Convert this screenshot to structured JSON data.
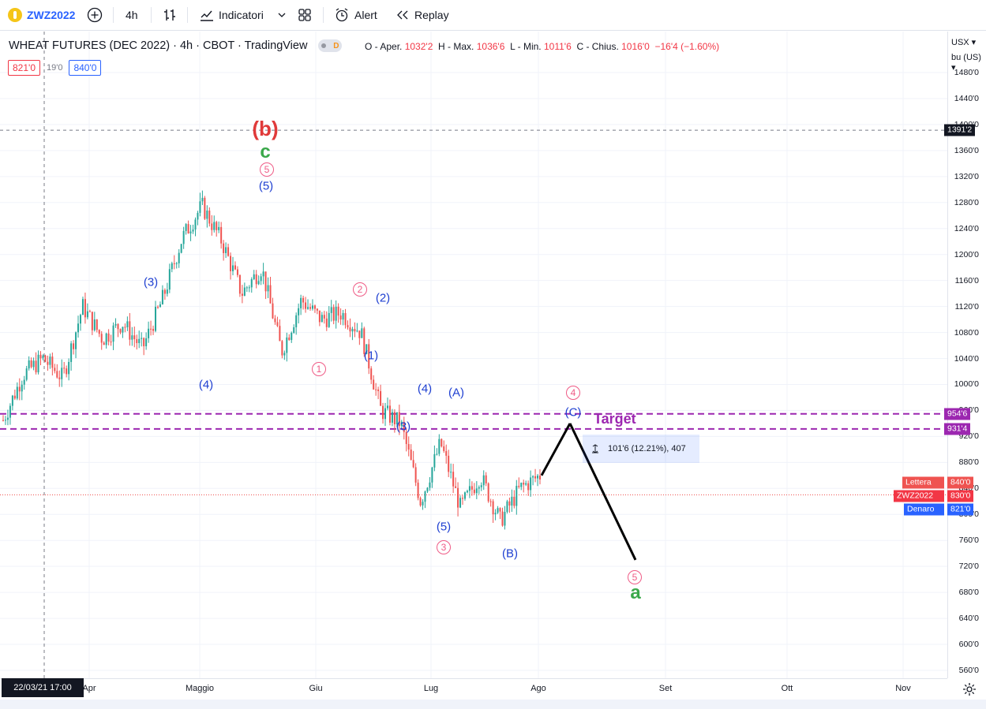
{
  "toolbar": {
    "symbol": "ZWZ2022",
    "interval": "4h",
    "indicators_label": "Indicatori",
    "alert_label": "Alert",
    "replay_label": "Replay"
  },
  "legend": {
    "title": "WHEAT FUTURES (DEC 2022) · 4h · CBOT · TradingView",
    "badge": "D",
    "open_label": "O - Aper.",
    "open": "1032'2",
    "high_label": "H - Max.",
    "high": "1036'6",
    "low_label": "L - Min.",
    "low": "1011'6",
    "close_label": "C - Chius.",
    "close": "1016'0",
    "change": "−16'4 (−1.60%)"
  },
  "bidask": {
    "bid": "821'0",
    "spread": "19'0",
    "ask": "840'0"
  },
  "price_axis": {
    "currency": "USX",
    "unit": "bu (US)",
    "labels": [
      "1480'0",
      "1440'0",
      "1400'0",
      "1360'0",
      "1320'0",
      "1280'0",
      "1240'0",
      "1200'0",
      "1160'0",
      "1120'0",
      "1080'0",
      "1040'0",
      "1000'0",
      "960'0",
      "920'0",
      "880'0",
      "840'0",
      "800'0",
      "760'0",
      "720'0",
      "680'0",
      "640'0",
      "600'0",
      "560'0"
    ],
    "tags": {
      "crosshair": "1391'2",
      "target_high": "954'6",
      "target_low": "931'4",
      "ask_label": "Lettera",
      "ask_value": "840'0",
      "last_label": "ZWZ2022",
      "last_value": "830'0",
      "bid_label": "Denaro",
      "bid_value": "821'0"
    }
  },
  "time_axis": {
    "labels": [
      "Apr",
      "Maggio",
      "Giu",
      "Lug",
      "Ago",
      "Set",
      "Ott",
      "Nov"
    ],
    "crosshair_date": "22/03/21   17:00"
  },
  "annotations": {
    "target": "Target",
    "measure": "101'6 (12.21%), 407",
    "wave_labels": [
      {
        "text": "(b)",
        "style": "red-big"
      },
      {
        "text": "c",
        "style": "green"
      },
      {
        "text": "5",
        "style": "circ"
      },
      {
        "text": "(5)",
        "style": "blue"
      },
      {
        "text": "(3)",
        "style": "blue"
      },
      {
        "text": "(4)",
        "style": "blue"
      },
      {
        "text": "1",
        "style": "circ"
      },
      {
        "text": "2",
        "style": "circ"
      },
      {
        "text": "(2)",
        "style": "blue"
      },
      {
        "text": "(1)",
        "style": "blue"
      },
      {
        "text": "(4)",
        "style": "blue"
      },
      {
        "text": "(3)",
        "style": "blue"
      },
      {
        "text": "(A)",
        "style": "blue"
      },
      {
        "text": "(5)",
        "style": "blue"
      },
      {
        "text": "3",
        "style": "circ"
      },
      {
        "text": "(B)",
        "style": "blue"
      },
      {
        "text": "4",
        "style": "circ"
      },
      {
        "text": "(C)",
        "style": "blue"
      },
      {
        "text": "5",
        "style": "circ"
      },
      {
        "text": "a",
        "style": "green"
      }
    ]
  },
  "colors": {
    "up": "#26a69a",
    "down": "#ef5350",
    "target_line": "#9c27b0",
    "wave_blue": "#1e3fd1",
    "wave_pink": "#ef5b86",
    "accent": "#2962ff"
  },
  "chart_data": {
    "type": "line",
    "series": [
      {
        "values": [
          945,
          1015,
          1040,
          1010,
          1120,
          1070,
          1095,
          1055,
          1130,
          1225,
          1275,
          1220,
          1140,
          1180,
          1050,
          1130,
          1100,
          1110,
          1080,
          960,
          940,
          820,
          910,
          810,
          860,
          790,
          840,
          860
        ]
      }
    ],
    "projection": [
      860,
      940,
      730
    ],
    "target_levels": [
      954.75,
      931.5
    ],
    "ylim": [
      540,
      1500
    ]
  }
}
